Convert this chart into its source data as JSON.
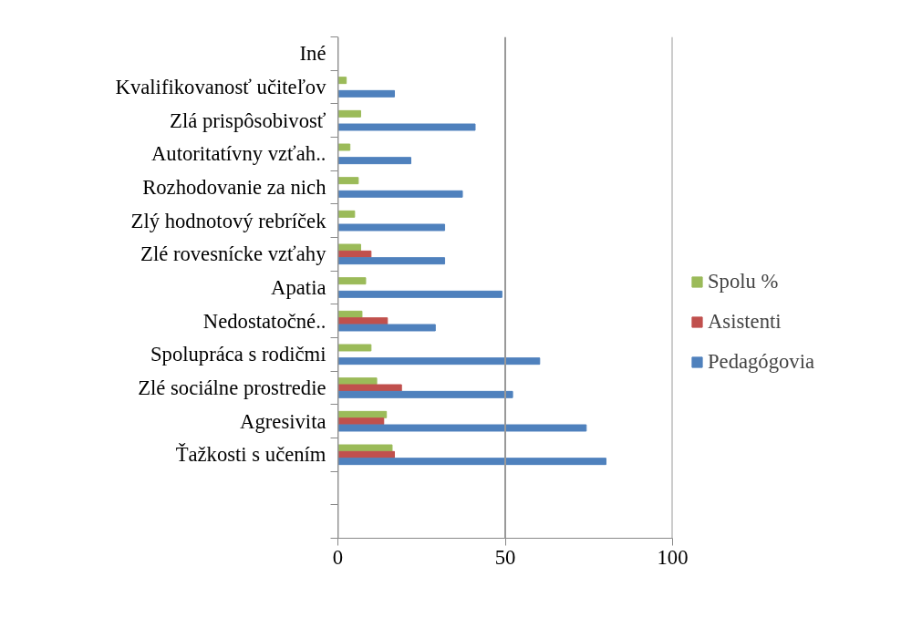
{
  "chart_data": {
    "type": "bar",
    "orientation": "horizontal",
    "categories": [
      "Iné",
      "Kvalifikovanosť učiteľov",
      "Zlá prispôsobivosť",
      "Autoritatívny vzťah..",
      "Rozhodovanie za nich",
      "Zlý hodnotový rebríček",
      "Zlé rovesnícke vzťahy",
      "Apatia",
      "Nedostatočné..",
      "Spolupráca s rodičmi",
      "Zlé sociálne prostredie",
      "Agresivita",
      "Ťažkosti s učením",
      null,
      null
    ],
    "series": [
      {
        "name": "Spolu %",
        "color": "#9bbb59",
        "values": [
          null,
          2.5,
          6.8,
          3.6,
          6.1,
          5.0,
          6.8,
          8.3,
          7.2,
          9.9,
          11.6,
          14.5,
          16.2,
          null,
          null
        ]
      },
      {
        "name": "Asistenti",
        "color": "#c0504d",
        "values": [
          null,
          null,
          null,
          null,
          null,
          null,
          9.9,
          null,
          14.8,
          null,
          19.0,
          13.7,
          16.9,
          null,
          null
        ]
      },
      {
        "name": "Pedagógovia",
        "color": "#4f81bd",
        "values": [
          null,
          16.9,
          41.0,
          21.8,
          37.2,
          31.9,
          31.9,
          49.0,
          29.1,
          60.3,
          52.2,
          74.2,
          80.1,
          null,
          null
        ]
      }
    ],
    "xlim": [
      0,
      100
    ],
    "xticks": [
      0,
      50,
      100
    ],
    "grid": "x",
    "legend": "right"
  }
}
